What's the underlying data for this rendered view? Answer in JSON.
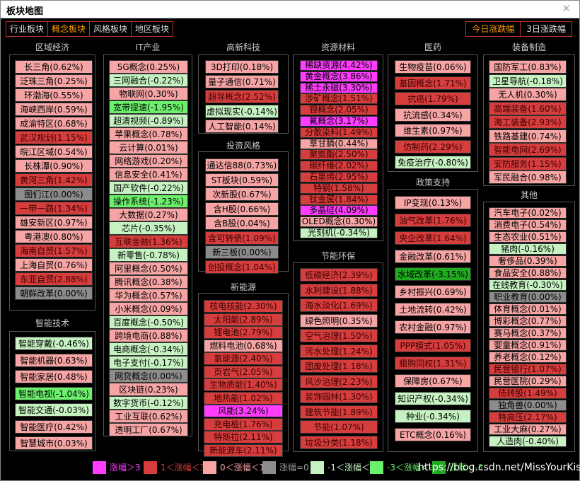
{
  "window": {
    "title": "板块地图",
    "close_glyph": "✕"
  },
  "tabs_left": [
    "行业板块",
    "概念板块",
    "风格板块",
    "地区板块"
  ],
  "tabs_right": [
    "今日涨跌幅",
    "3日涨跌幅"
  ],
  "legend": [
    {
      "color": "#ff3cff",
      "label": "涨幅＞3"
    },
    {
      "color": "#d63d3d",
      "label": "1＜涨幅＜3"
    },
    {
      "color": "#f6a4a4",
      "label": "0＜涨幅＜1"
    },
    {
      "color": "#8c8c8c",
      "label": "涨幅=0"
    },
    {
      "color": "#c6f2c2",
      "label": "-1＜涨幅＜0"
    },
    {
      "color": "#6cf06c",
      "label": "-3＜涨幅＜-1"
    },
    {
      "color": "#1faa1f",
      "label": "涨幅＜-3"
    }
  ],
  "watermark": "https://blog.csdn.net/MissYourKiss",
  "panels": {
    "quyu": {
      "title": "区域经济",
      "items": [
        "长三角(0.62%)",
        "泛珠三角(0.25%)",
        "环渤海(0.55%)",
        "海峡西岸(0.59%)",
        "成渝特区(0.68%)",
        "武汉规划(1.15%)",
        "皖江区域(0.54%)",
        "长株潭(0.90%)",
        "黄河三角(1.42%)",
        "图们江(0.00%)",
        "一带一路(1.34%)",
        "雄安新区(0.97%)",
        "粤港澳(0.80%)",
        "海南自贸(1.57%)",
        "上海自贸(0.76%)",
        "东亚自贸(2.88%)",
        "朝鲜改革(0.00%)"
      ]
    },
    "zhineng": {
      "title": "智能技术",
      "items": [
        "智能穿戴(-0.46%)",
        "智能机器(0.63%)",
        "智能家居(0.48%)",
        "智能电视(-1.04%)",
        "智能交通(-0.03%)",
        "智能医疗(0.42%)",
        "智慧城市(0.03%)"
      ]
    },
    "it": {
      "title": "IT产业",
      "items": [
        "5G概念(0.25%)",
        "三网融合(-0.22%)",
        "物联网(0.30%)",
        "宽带提速(-1.95%)",
        "超清视频(-0.89%)",
        "苹果概念(0.78%)",
        "云计算(0.01%)",
        "网络游戏(0.20%)",
        "信息安全(0.41%)",
        "国产软件(-0.22%)",
        "操作系统(-1.23%)",
        "大数据(0.27%)",
        "芯片(-0.35%)",
        "互联金融(1.36%)",
        "新零售(-0.78%)",
        "阿里概念(0.50%)",
        "腾讯概念(0.38%)",
        "华为概念(0.57%)",
        "小米概念(0.09%)",
        "百度概念(-0.50%)",
        "跨境电商(0.88%)",
        "电商概念(-0.34%)",
        "电子支付(-0.17%)",
        "网贷概念(0.00%)",
        "区块链(0.23%)",
        "数字货币(-0.12%)",
        "工业互联(0.62%)",
        "透明工厂(0.67%)"
      ]
    },
    "gaoxin": {
      "title": "高新科技",
      "items": [
        "3D打印(0.18%)",
        "量子通信(0.71%)",
        "超导概念(2.52%)",
        "虚拟现实(-0.14%)",
        "人工智能(0.14%)"
      ]
    },
    "touzi": {
      "title": "投资风格",
      "items": [
        "通达信88(0.73%)",
        "ST板块(0.59%)",
        "次新股(0.67%)",
        "含H股(0.66%)",
        "含B股(0.04%)",
        "含可转债(1.09%)",
        "新三板(0.00%)",
        "创投概念(1.04%)"
      ]
    },
    "xinneng": {
      "title": "新能源",
      "items": [
        "核电核能(2.30%)",
        "太阳能(2.89%)",
        "锂电池(2.79%)",
        "燃料电池(0.68%)",
        "氢能源(2.40%)",
        "页岩气(2.05%)",
        "生物质能(1.40%)",
        "地热能(1.02%)",
        "风能(3.24%)",
        "充电桩(1.76%)",
        "特斯拉(2.11%)",
        "新能源车(2.11%)"
      ]
    },
    "ziyuan": {
      "title": "资源材料",
      "items": [
        "稀缺资源(4.42%)",
        "黄金概念(3.86%)",
        "稀土永磁(3.30%)",
        "涉矿概念(1.51%)",
        "锂概念(2.05%)",
        "氟概念(3.17%)",
        "分散染料(1.49%)",
        "草甘膦(0.44%)",
        "聚氨酯(2.50%)",
        "碳纤维(2.02%)",
        "石墨烯(2.95%)",
        "特钢(1.58%)",
        "钛金属(1.84%)",
        "多晶硅(4.09%)",
        "OLED概念(0.30%)",
        "光刻机(-0.34%)"
      ]
    },
    "jieneng": {
      "title": "节能环保",
      "items": [
        "低碳经济(2.39%)",
        "水利建设(1.88%)",
        "海水淡化(1.69%)",
        "绿色照明(0.35%)",
        "空气治理(1.50%)",
        "污水处理(1.24%)",
        "固废处理(1.18%)",
        "风沙治理(2.23%)",
        "装饰园林(1.30%)",
        "建筑节能(1.89%)",
        "节能(1.07%)",
        "垃圾分类(1.18%)"
      ]
    },
    "yiyao": {
      "title": "医药",
      "items": [
        "生物疫苗(0.06%)",
        "基因概念(1.71%)",
        "抗癌(1.79%)",
        "抗流感(0.34%)",
        "维生素(0.97%)",
        "仿制药(2.29%)",
        "免疫治疗(-0.80%)"
      ]
    },
    "zhengce": {
      "title": "政策支持",
      "items": [
        "IP变现(0.13%)",
        "油气改革(1.76%)",
        "央企改革(1.64%)",
        "金融改革(0.61%)",
        "水域改革(-3.15%)",
        "乡村振兴(0.69%)",
        "土地流转(0.42%)",
        "农村金融(0.97%)",
        "PPP模式(1.05%)",
        "租购同权(1.31%)",
        "保障房(0.67%)",
        "知识产权(-0.34%)",
        "种业(-0.34%)",
        "ETC概念(0.16%)"
      ]
    },
    "zhuangbei": {
      "title": "装备制造",
      "items": [
        "国防军工(0.83%)",
        "卫星导航(-0.18%)",
        "无人机(0.30%)",
        "高端装备(1.60%)",
        "海工装备(2.93%)",
        "铁路基建(0.74%)",
        "智能电网(2.69%)",
        "安防服务(1.15%)",
        "军民融合(0.98%)"
      ]
    },
    "qita": {
      "title": "其他",
      "items": [
        "汽车电子(0.02%)",
        "消费电子(0.54%)",
        "生态农业(0.51%)",
        "猪肉(-0.16%)",
        "奢侈品(0.39%)",
        "食品安全(0.88%)",
        "在线教育(-0.30%)",
        "职业教育(0.00%)",
        "体育概念(0.01%)",
        "博彩概念(0.77%)",
        "赛马概念(0.37%)",
        "婴童概念(0.91%)",
        "养老概念(0.12%)",
        "民营银行(1.07%)",
        "民营医院(0.29%)",
        "债转股(1.49%)",
        "独角兽(0.00%)",
        "特高压(2.17%)",
        "工业大麻(0.27%)",
        "人造肉(-0.40%)"
      ]
    }
  }
}
